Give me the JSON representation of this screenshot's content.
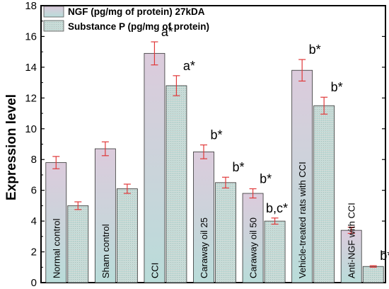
{
  "chart_data": {
    "type": "bar",
    "ylabel": "Expression level",
    "xlabel": "",
    "ylim": [
      0,
      18
    ],
    "yticks": [
      0,
      2,
      4,
      6,
      8,
      10,
      12,
      14,
      16,
      18
    ],
    "grid": false,
    "legend_position": "top-left",
    "categories": [
      "Normal control",
      "Sham control",
      "CCI",
      "Caraway oil 25",
      "Caraway oil 50",
      "Vehicle-treated rats with CCI",
      "Anti-NGF with CCI"
    ],
    "series": [
      {
        "name": "NGF (pg/mg of protein) 27kDA",
        "color": "#d9c6d9",
        "values": [
          7.8,
          8.7,
          14.9,
          8.5,
          5.8,
          13.8,
          3.4
        ],
        "errors": [
          0.4,
          0.45,
          0.75,
          0.45,
          0.3,
          0.7,
          0.2
        ],
        "annotations": [
          "",
          "",
          "a*",
          "b*",
          "b*",
          "b*",
          ""
        ]
      },
      {
        "name": "Substance P (pg/mg of protein)",
        "color": "#cfd6d2",
        "values": [
          5.0,
          6.1,
          12.8,
          6.5,
          4.0,
          11.5,
          1.05
        ],
        "errors": [
          0.25,
          0.3,
          0.65,
          0.35,
          0.2,
          0.55,
          0.05
        ],
        "annotations": [
          "",
          "",
          "a*",
          "b*",
          "b,c*",
          "b*",
          "b*"
        ]
      }
    ]
  }
}
